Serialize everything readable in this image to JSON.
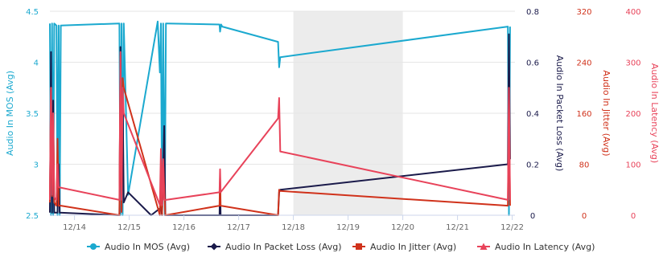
{
  "chart_data": {
    "type": "line",
    "x_ticks": [
      "12/14",
      "12/15",
      "12/16",
      "12/17",
      "12/18",
      "12/19",
      "12/20",
      "12/21",
      "12/22"
    ],
    "x_range": [
      13.55,
      22.05
    ],
    "shaded_band": [
      18.0,
      20.0
    ],
    "axes": [
      {
        "id": "mos",
        "label": "Audio In MOS (Avg)",
        "ticks": [
          "2.5",
          "3",
          "3.5",
          "4",
          "4.5"
        ],
        "range": [
          2.5,
          4.5
        ],
        "color": "#1ba9cf",
        "side": "left"
      },
      {
        "id": "loss",
        "label": "Audio In Packet Loss (Avg)",
        "ticks": [
          "0",
          "0.2",
          "0.4",
          "0.6",
          "0.8"
        ],
        "range": [
          0,
          0.8
        ],
        "color": "#1a1a4a",
        "side": "right"
      },
      {
        "id": "jitter",
        "label": "Audio In Jitter (Avg)",
        "ticks": [
          "0",
          "80",
          "160",
          "240",
          "320"
        ],
        "range": [
          0,
          320
        ],
        "color": "#d0321b",
        "side": "right"
      },
      {
        "id": "latency",
        "label": "Audio In Latency (Avg)",
        "ticks": [
          "0",
          "100",
          "200",
          "300",
          "400"
        ],
        "range": [
          0,
          400
        ],
        "color": "#e8435a",
        "side": "right"
      }
    ],
    "series": [
      {
        "name": "Audio In MOS (Avg)",
        "axis": "mos",
        "color": "#1ba9cf",
        "points": [
          [
            13.55,
            4.38
          ],
          [
            13.57,
            2.5
          ],
          [
            13.59,
            4.38
          ],
          [
            13.61,
            2.5
          ],
          [
            13.63,
            4.38
          ],
          [
            13.67,
            4.36
          ],
          [
            13.69,
            2.5
          ],
          [
            13.71,
            4.36
          ],
          [
            13.73,
            2.5
          ],
          [
            13.75,
            4.36
          ],
          [
            14.82,
            4.38
          ],
          [
            14.84,
            2.5
          ],
          [
            14.86,
            4.38
          ],
          [
            14.88,
            2.5
          ],
          [
            14.9,
            4.38
          ],
          [
            14.98,
            2.7
          ],
          [
            15.52,
            4.4
          ],
          [
            15.56,
            3.9
          ],
          [
            15.58,
            4.38
          ],
          [
            15.6,
            2.5
          ],
          [
            15.62,
            4.38
          ],
          [
            15.65,
            2.5
          ],
          [
            15.67,
            4.38
          ],
          [
            15.69,
            4.38
          ],
          [
            16.65,
            4.37
          ],
          [
            16.66,
            4.3
          ],
          [
            16.68,
            4.37
          ],
          [
            16.7,
            4.35
          ],
          [
            17.72,
            4.2
          ],
          [
            17.74,
            3.95
          ],
          [
            17.76,
            4.05
          ],
          [
            21.92,
            4.35
          ],
          [
            21.94,
            2.5
          ],
          [
            21.96,
            4.35
          ]
        ]
      },
      {
        "name": "Audio In Packet Loss (Avg)",
        "axis": "loss",
        "color": "#1a1a4a",
        "points": [
          [
            13.55,
            0.01
          ],
          [
            13.57,
            0.64
          ],
          [
            13.59,
            0.01
          ],
          [
            13.61,
            0.45
          ],
          [
            13.63,
            0.01
          ],
          [
            13.69,
            0.01
          ],
          [
            13.71,
            0.2
          ],
          [
            13.73,
            0.01
          ],
          [
            14.82,
            0.0
          ],
          [
            14.84,
            0.66
          ],
          [
            14.86,
            0.02
          ],
          [
            14.88,
            0.5
          ],
          [
            14.9,
            0.05
          ],
          [
            14.98,
            0.09
          ],
          [
            15.4,
            0.0
          ],
          [
            15.58,
            0.03
          ],
          [
            15.6,
            0.0
          ],
          [
            15.64,
            0.35
          ],
          [
            15.66,
            0.0
          ],
          [
            16.65,
            0.0
          ],
          [
            16.66,
            0.12
          ],
          [
            16.67,
            0.0
          ],
          [
            17.72,
            0.0
          ],
          [
            17.74,
            0.09
          ],
          [
            17.76,
            0.1
          ],
          [
            21.92,
            0.2
          ],
          [
            21.94,
            0.71
          ],
          [
            21.96,
            0.22
          ]
        ]
      },
      {
        "name": "Audio In Jitter (Avg)",
        "axis": "jitter",
        "color": "#d0321b",
        "points": [
          [
            13.55,
            20
          ],
          [
            13.57,
            200
          ],
          [
            13.59,
            30
          ],
          [
            13.61,
            150
          ],
          [
            13.63,
            20
          ],
          [
            13.67,
            15
          ],
          [
            13.69,
            120
          ],
          [
            13.71,
            15
          ],
          [
            13.75,
            15
          ],
          [
            14.82,
            0
          ],
          [
            14.84,
            250
          ],
          [
            14.86,
            5
          ],
          [
            14.88,
            215
          ],
          [
            14.9,
            200
          ],
          [
            15.56,
            0
          ],
          [
            15.58,
            70
          ],
          [
            15.6,
            0
          ],
          [
            15.62,
            85
          ],
          [
            15.66,
            0
          ],
          [
            16.65,
            15
          ],
          [
            16.66,
            60
          ],
          [
            16.67,
            15
          ],
          [
            17.72,
            0
          ],
          [
            17.74,
            40
          ],
          [
            17.76,
            38
          ],
          [
            21.92,
            15
          ],
          [
            21.94,
            180
          ],
          [
            21.96,
            15
          ]
        ]
      },
      {
        "name": "Audio In Latency (Avg)",
        "axis": "latency",
        "color": "#e8435a",
        "points": [
          [
            13.55,
            30
          ],
          [
            13.57,
            250
          ],
          [
            13.59,
            40
          ],
          [
            13.61,
            200
          ],
          [
            13.63,
            35
          ],
          [
            13.67,
            30
          ],
          [
            13.69,
            100
          ],
          [
            13.71,
            55
          ],
          [
            14.82,
            30
          ],
          [
            14.84,
            320
          ],
          [
            14.86,
            30
          ],
          [
            14.88,
            250
          ],
          [
            14.9,
            200
          ],
          [
            15.56,
            20
          ],
          [
            15.58,
            130
          ],
          [
            15.6,
            20
          ],
          [
            15.62,
            110
          ],
          [
            15.64,
            30
          ],
          [
            15.67,
            30
          ],
          [
            16.65,
            45
          ],
          [
            16.66,
            90
          ],
          [
            16.67,
            45
          ],
          [
            17.72,
            190
          ],
          [
            17.74,
            230
          ],
          [
            17.76,
            125
          ],
          [
            21.92,
            30
          ],
          [
            21.94,
            250
          ],
          [
            21.96,
            30
          ]
        ]
      }
    ],
    "legend": {
      "placement": "bottom",
      "items": [
        {
          "label": "Audio In MOS (Avg)",
          "color": "#1ba9cf",
          "marker": "circle"
        },
        {
          "label": "Audio In Packet Loss (Avg)",
          "color": "#1a1a4a",
          "marker": "diamond"
        },
        {
          "label": "Audio In Jitter (Avg)",
          "color": "#d0321b",
          "marker": "square"
        },
        {
          "label": "Audio In Latency (Avg)",
          "color": "#e8435a",
          "marker": "triangle"
        }
      ]
    },
    "grid": "horizontal"
  }
}
